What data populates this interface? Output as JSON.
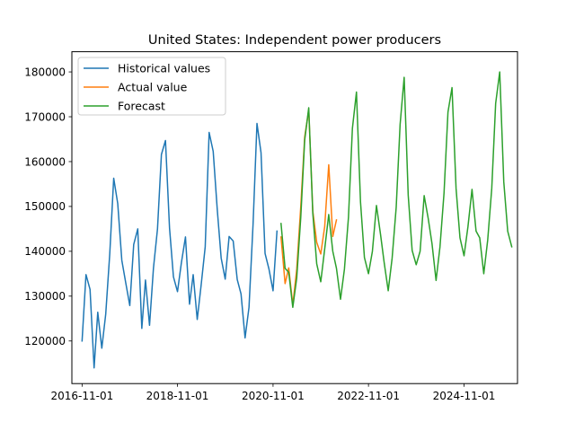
{
  "chart_data": {
    "type": "line",
    "title": "United States: Independent power producers",
    "xlabel": "",
    "ylabel": "",
    "x_ticks": [
      "2016-11-01",
      "2018-11-01",
      "2020-11-01",
      "2022-11-01",
      "2024-11-01"
    ],
    "y_ticks": [
      120000,
      130000,
      140000,
      150000,
      160000,
      170000,
      180000
    ],
    "xlim": [
      "2016-08-15",
      "2025-12-15"
    ],
    "ylim": [
      110500,
      184500
    ],
    "legend_position": "top-left",
    "grid": false,
    "series": [
      {
        "name": "Historical values",
        "color": "#1f77b4",
        "x": [
          "2016-11-01",
          "2016-12-01",
          "2017-01-01",
          "2017-02-01",
          "2017-03-01",
          "2017-04-01",
          "2017-05-01",
          "2017-06-01",
          "2017-07-01",
          "2017-08-01",
          "2017-09-01",
          "2017-10-01",
          "2017-11-01",
          "2017-12-01",
          "2018-01-01",
          "2018-02-01",
          "2018-03-01",
          "2018-04-01",
          "2018-05-01",
          "2018-06-01",
          "2018-07-01",
          "2018-08-01",
          "2018-09-01",
          "2018-10-01",
          "2018-11-01",
          "2018-12-01",
          "2019-01-01",
          "2019-02-01",
          "2019-03-01",
          "2019-04-01",
          "2019-05-01",
          "2019-06-01",
          "2019-07-01",
          "2019-08-01",
          "2019-09-01",
          "2019-10-01",
          "2019-11-01",
          "2019-12-01",
          "2020-01-01",
          "2020-02-01",
          "2020-03-01",
          "2020-04-01",
          "2020-05-01",
          "2020-06-01",
          "2020-07-01",
          "2020-08-01",
          "2020-09-01",
          "2020-10-01",
          "2020-11-01",
          "2020-12-01"
        ],
        "values": [
          120000,
          134800,
          131500,
          114000,
          126400,
          118400,
          126000,
          139500,
          156300,
          150600,
          138000,
          133000,
          127900,
          141500,
          145000,
          122800,
          133600,
          123500,
          136200,
          145000,
          161600,
          164700,
          145200,
          134300,
          131000,
          137500,
          143200,
          128200,
          134800,
          124800,
          132500,
          141000,
          166500,
          162300,
          149400,
          138500,
          133800,
          143300,
          142300,
          133700,
          130500,
          120700,
          127500,
          146000,
          168500,
          162000,
          139500,
          136000,
          131200,
          144500
        ]
      },
      {
        "name": "Actual value",
        "color": "#ff7f0e",
        "x": [
          "2021-01-01",
          "2021-02-01",
          "2021-03-01",
          "2021-04-01",
          "2021-05-01",
          "2021-06-01",
          "2021-07-01",
          "2021-08-01",
          "2021-09-01",
          "2021-10-01",
          "2021-11-01",
          "2021-12-01",
          "2022-01-01",
          "2022-02-01",
          "2022-03-01"
        ],
        "values": [
          143200,
          132800,
          136300,
          128000,
          136000,
          150000,
          165500,
          171500,
          149000,
          142000,
          139400,
          145500,
          159300,
          143300,
          147000
        ]
      },
      {
        "name": "Forecast",
        "color": "#2ca02c",
        "x": [
          "2021-01-01",
          "2021-02-01",
          "2021-03-01",
          "2021-04-01",
          "2021-05-01",
          "2021-06-01",
          "2021-07-01",
          "2021-08-01",
          "2021-09-01",
          "2021-10-01",
          "2021-11-01",
          "2021-12-01",
          "2022-01-01",
          "2022-02-01",
          "2022-03-01",
          "2022-04-01",
          "2022-05-01",
          "2022-06-01",
          "2022-07-01",
          "2022-08-01",
          "2022-09-01",
          "2022-10-01",
          "2022-11-01",
          "2022-12-01",
          "2023-01-01",
          "2023-02-01",
          "2023-03-01",
          "2023-04-01",
          "2023-05-01",
          "2023-06-01",
          "2023-07-01",
          "2023-08-01",
          "2023-09-01",
          "2023-10-01",
          "2023-11-01",
          "2023-12-01",
          "2024-01-01",
          "2024-02-01",
          "2024-03-01",
          "2024-04-01",
          "2024-05-01",
          "2024-06-01",
          "2024-07-01",
          "2024-08-01",
          "2024-09-01",
          "2024-10-01",
          "2024-11-01",
          "2024-12-01",
          "2025-01-01",
          "2025-02-01",
          "2025-03-01",
          "2025-04-01",
          "2025-05-01",
          "2025-06-01",
          "2025-07-01",
          "2025-08-01",
          "2025-09-01",
          "2025-10-01",
          "2025-11-01"
        ],
        "values": [
          146200,
          136200,
          135300,
          127500,
          134000,
          147600,
          164800,
          172000,
          148500,
          137200,
          133200,
          140500,
          148200,
          140000,
          136200,
          129300,
          136000,
          147600,
          167400,
          175500,
          151000,
          138600,
          135000,
          140000,
          150200,
          143800,
          137500,
          131200,
          138500,
          149800,
          168300,
          178800,
          152500,
          140200,
          137000,
          140000,
          152400,
          147300,
          141700,
          133500,
          141000,
          153000,
          171000,
          176500,
          154000,
          143000,
          139000,
          145500,
          153800,
          144500,
          143000,
          135000,
          142500,
          154000,
          173000,
          180000,
          155500,
          144500,
          141000
        ]
      }
    ]
  }
}
